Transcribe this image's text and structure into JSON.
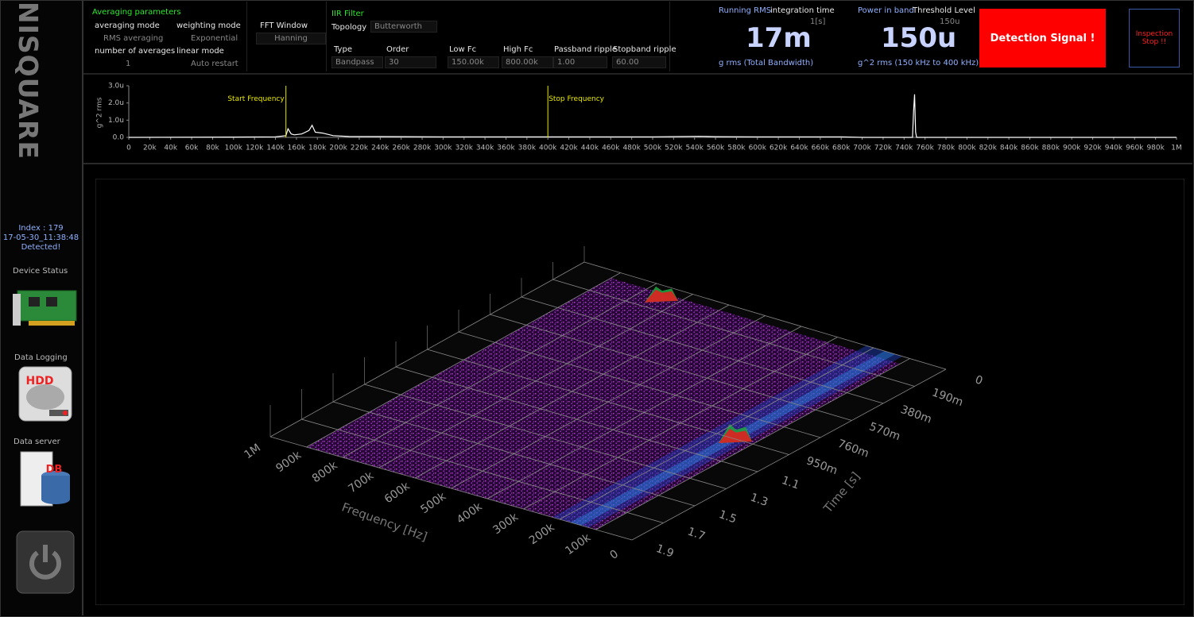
{
  "sidebar": {
    "logo": "NISQUARE",
    "index": "Index : 179",
    "timestamp": "17-05-30_11:38:48",
    "status": "Detected!",
    "device_status": "Device Status",
    "data_logging": "Data Logging",
    "hdd": "HDD",
    "data_server": "Data server",
    "db": "DB"
  },
  "averaging": {
    "title": "Averaging parameters",
    "averaging_mode": {
      "label": "averaging mode",
      "value": "RMS averaging"
    },
    "weighting_mode": {
      "label": "weighting mode",
      "value": "Exponential"
    },
    "number_of_averages": {
      "label": "number of averages",
      "value": "1"
    },
    "linear_mode": {
      "label": "linear mode",
      "value": "Auto restart"
    }
  },
  "fft": {
    "label": "FFT Window",
    "value": "Hanning"
  },
  "iir": {
    "title": "IIR Filter",
    "topology": {
      "label": "Topology",
      "value": "Butterworth"
    },
    "type": {
      "label": "Type",
      "value": "Bandpass"
    },
    "order": {
      "label": "Order",
      "value": "30"
    },
    "low_fc": {
      "label": "Low Fc",
      "value": "150.00k"
    },
    "high_fc": {
      "label": "High Fc",
      "value": "800.00k"
    },
    "passband": {
      "label": "Passband ripple",
      "value": "1.00"
    },
    "stopband": {
      "label": "Stopband ripple",
      "value": "60.00"
    }
  },
  "running_rms": {
    "label": "Running RMS",
    "time_label": "integration time",
    "time_value": "1[s]",
    "value": "17m",
    "unit": "g rms (Total Bandwidth)"
  },
  "power_in_band": {
    "label": "Power in band",
    "threshold_label": "Threshold Level",
    "threshold_value": "150u",
    "value": "150u",
    "unit": "g^2 rms (150 kHz to 400 kHz)"
  },
  "detection_button": "Detection Signal !",
  "inspection_button": "Inspection Stop !!",
  "spectrum": {
    "type": "line",
    "y_label": "g^2 rms",
    "color": "#ffffff",
    "xlim": [
      0,
      1000000
    ],
    "ylim": [
      0,
      3e-06
    ],
    "xticks": [
      0,
      {
        "value": 20000,
        "label": "20k"
      },
      {
        "value": 40000,
        "label": "40k"
      },
      {
        "value": 60000,
        "label": "60k"
      },
      {
        "value": 80000,
        "label": "80k"
      },
      {
        "value": 100000,
        "label": "100k"
      },
      {
        "value": 120000,
        "label": "120k"
      },
      {
        "value": 140000,
        "label": "140k"
      },
      {
        "value": 160000,
        "label": "160k"
      },
      {
        "value": 180000,
        "label": "180k"
      },
      {
        "value": 200000,
        "label": "200k"
      },
      {
        "value": 220000,
        "label": "220k"
      },
      {
        "value": 240000,
        "label": "240k"
      },
      {
        "value": 260000,
        "label": "260k"
      },
      {
        "value": 280000,
        "label": "280k"
      },
      {
        "value": 300000,
        "label": "300k"
      },
      {
        "value": 320000,
        "label": "320k"
      },
      {
        "value": 340000,
        "label": "340k"
      },
      {
        "value": 360000,
        "label": "360k"
      },
      {
        "value": 380000,
        "label": "380k"
      },
      {
        "value": 400000,
        "label": "400k"
      },
      {
        "value": 420000,
        "label": "420k"
      },
      {
        "value": 440000,
        "label": "440k"
      },
      {
        "value": 460000,
        "label": "460k"
      },
      {
        "value": 480000,
        "label": "480k"
      },
      {
        "value": 500000,
        "label": "500k"
      },
      {
        "value": 520000,
        "label": "520k"
      },
      {
        "value": 540000,
        "label": "540k"
      },
      {
        "value": 560000,
        "label": "560k"
      },
      {
        "value": 580000,
        "label": "580k"
      },
      {
        "value": 600000,
        "label": "600k"
      },
      {
        "value": 620000,
        "label": "620k"
      },
      {
        "value": 640000,
        "label": "640k"
      },
      {
        "value": 660000,
        "label": "660k"
      },
      {
        "value": 680000,
        "label": "680k"
      },
      {
        "value": 700000,
        "label": "700k"
      },
      {
        "value": 720000,
        "label": "720k"
      },
      {
        "value": 740000,
        "label": "740k"
      },
      {
        "value": 760000,
        "label": "760k"
      },
      {
        "value": 780000,
        "label": "780k"
      },
      {
        "value": 800000,
        "label": "800k"
      },
      {
        "value": 820000,
        "label": "820k"
      },
      {
        "value": 840000,
        "label": "840k"
      },
      {
        "value": 860000,
        "label": "860k"
      },
      {
        "value": 880000,
        "label": "880k"
      },
      {
        "value": 900000,
        "label": "900k"
      },
      {
        "value": 920000,
        "label": "920k"
      },
      {
        "value": 940000,
        "label": "940k"
      },
      {
        "value": 960000,
        "label": "960k"
      },
      {
        "value": 980000,
        "label": "980k"
      },
      {
        "value": 1000000,
        "label": "1M"
      }
    ],
    "yticks": [
      {
        "value": 0,
        "label": "0.0"
      },
      {
        "value": 1e-06,
        "label": "1.0u"
      },
      {
        "value": 2e-06,
        "label": "2.0u"
      },
      {
        "value": 3e-06,
        "label": "3.0u"
      }
    ],
    "x": [
      0,
      100000,
      140000,
      150000,
      152000,
      155000,
      158000,
      165000,
      172000,
      175000,
      178000,
      185000,
      195000,
      210000,
      300000,
      400000,
      500000,
      545000,
      560000,
      600000,
      680000,
      700000,
      748000,
      749000,
      750000,
      751000,
      752000,
      800000,
      1000000
    ],
    "values": [
      0,
      2e-08,
      3e-08,
      1e-07,
      5e-07,
      2e-07,
      1.5e-07,
      2e-07,
      4e-07,
      7e-07,
      3e-07,
      2.5e-07,
      1e-07,
      5e-08,
      3e-08,
      3e-08,
      3e-08,
      6e-08,
      4e-08,
      3e-08,
      3e-08,
      0,
      0,
      1.5e-06,
      2.5e-06,
      3e-07,
      0,
      0,
      0
    ],
    "cursors": [
      {
        "label": "Start Frequency",
        "x": 150000,
        "color": "#e8e800"
      },
      {
        "label": "Stop Frequency",
        "x": 400000,
        "color": "#e8e800"
      }
    ]
  },
  "waterfall": {
    "type": "surface3d",
    "x_label": "Frequency [Hz]",
    "y_label": "Time [s]",
    "xlim": [
      0,
      1000000
    ],
    "ylim": [
      0,
      1.9
    ],
    "xticks": [
      0,
      {
        "value": 100000,
        "label": "100k"
      },
      {
        "value": 200000,
        "label": "200k"
      },
      {
        "value": 300000,
        "label": "300k"
      },
      {
        "value": 400000,
        "label": "400k"
      },
      {
        "value": 500000,
        "label": "500k"
      },
      {
        "value": 600000,
        "label": "600k"
      },
      {
        "value": 700000,
        "label": "700k"
      },
      {
        "value": 800000,
        "label": "800k"
      },
      {
        "value": 900000,
        "label": "900k"
      },
      {
        "value": 1000000,
        "label": "1M"
      }
    ],
    "yticks": [
      0,
      {
        "value": 0.19,
        "label": "190m"
      },
      {
        "value": 0.38,
        "label": "380m"
      },
      {
        "value": 0.57,
        "label": "570m"
      },
      {
        "value": 0.76,
        "label": "760m"
      },
      {
        "value": 0.95,
        "label": "950m"
      },
      {
        "value": 1.14,
        "label": "1.1"
      },
      {
        "value": 1.33,
        "label": "1.3"
      },
      {
        "value": 1.52,
        "label": "1.5"
      },
      {
        "value": 1.71,
        "label": "1.7"
      },
      1.9
    ]
  }
}
